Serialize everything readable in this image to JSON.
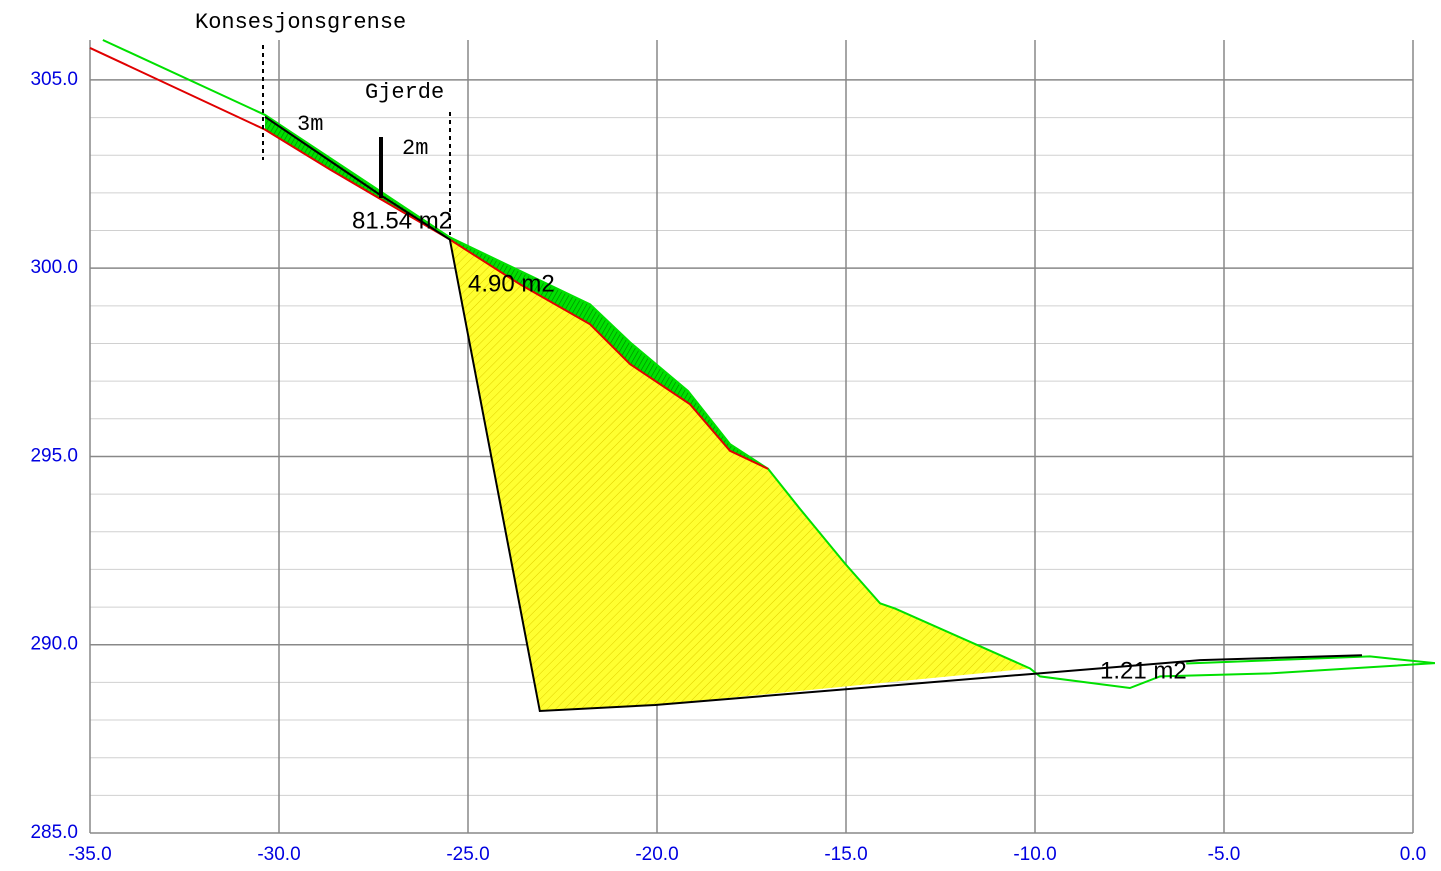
{
  "chart_data": {
    "type": "line",
    "xlim": [
      -35,
      0
    ],
    "ylim": [
      285,
      306.06
    ],
    "xticks": [
      {
        "value": -35,
        "label": "-35.0"
      },
      {
        "value": -30,
        "label": "-30.0"
      },
      {
        "value": -25,
        "label": "-25.0"
      },
      {
        "value": -20,
        "label": "-20.0"
      },
      {
        "value": -15,
        "label": "-15.0"
      },
      {
        "value": -10,
        "label": "-10.0"
      },
      {
        "value": -5,
        "label": "-5.0"
      },
      {
        "value": 0,
        "label": "0.0"
      }
    ],
    "yticks": [
      {
        "value": 285,
        "label": "285.0"
      },
      {
        "value": 290,
        "label": "290.0"
      },
      {
        "value": 295,
        "label": "295.0"
      },
      {
        "value": 300,
        "label": "300.0"
      },
      {
        "value": 305,
        "label": "305.0"
      }
    ],
    "y_minor_ticks": [
      286,
      287,
      288,
      289,
      291,
      292,
      293,
      294,
      296,
      297,
      298,
      299,
      301,
      302,
      303,
      304
    ],
    "grid": true,
    "series": [
      {
        "color": "#00e000",
        "x": [
          -34.66,
          -30.37,
          -25.48,
          -21.77,
          -20.71,
          -19.18,
          -18.07,
          -17.06,
          -16.22,
          -15.03,
          -14.1,
          -13.7,
          -10.13,
          -9.87,
          -7.49,
          -6.69,
          -3.78,
          0.58,
          -1.14,
          -6.0
        ],
        "values": [
          306.06,
          304.07,
          300.82,
          299.04,
          298.03,
          296.74,
          295.33,
          294.67,
          293.61,
          292.16,
          291.1,
          290.96,
          289.37,
          289.16,
          288.85,
          289.16,
          289.24,
          289.51,
          289.69,
          289.5
        ]
      },
      {
        "color": "#e00000",
        "x": [
          -35,
          -30.37,
          -28.65,
          -25.48,
          -23.62,
          -21.77,
          -20.71,
          -19.13,
          -18.07,
          -17.06
        ],
        "values": [
          305.85,
          303.68,
          302.62,
          300.76,
          299.57,
          298.51,
          297.45,
          296.39,
          295.15,
          294.67
        ]
      },
      {
        "color": "#000000",
        "x": [
          -30.37,
          -27.33,
          -25.48,
          -23.1,
          -20.05,
          -10.13,
          -5.63,
          -1.35
        ],
        "values": [
          304.02,
          301.95,
          300.76,
          288.24,
          288.4,
          289.22,
          289.59,
          289.72
        ]
      }
    ],
    "fill": {
      "color": "#ffff30",
      "x": [
        -25.48,
        -23.62,
        -21.77,
        -20.71,
        -19.13,
        -18.07,
        -17.06,
        -16.22,
        -15.03,
        -14.1,
        -13.7,
        -10.13,
        -20.05,
        -23.1
      ],
      "values": [
        300.76,
        299.57,
        298.51,
        297.45,
        296.39,
        295.15,
        294.67,
        293.61,
        292.16,
        291.1,
        290.96,
        289.37,
        288.4,
        288.24
      ]
    },
    "annotations": [
      "Konsesjonsgrense",
      "Gjerde",
      "3m",
      "2m",
      "81.54 m2",
      "4.90 m2",
      "1.21 m2"
    ]
  }
}
